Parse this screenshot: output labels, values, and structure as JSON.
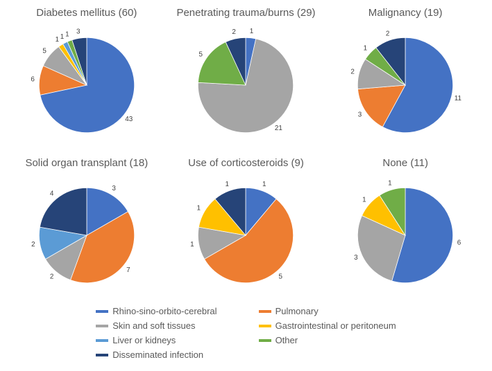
{
  "colors": {
    "rhino": "#4472c4",
    "pulmonary": "#ed7d31",
    "skin": "#a5a5a5",
    "gi": "#ffc000",
    "liver": "#5b9bd5",
    "other": "#70ad47",
    "disseminated": "#264478",
    "label_text": "#595959",
    "slice_label": "#404040",
    "background": "#ffffff"
  },
  "series_order": [
    "rhino",
    "pulmonary",
    "skin",
    "gi",
    "liver",
    "other",
    "disseminated"
  ],
  "series_labels": {
    "rhino": "Rhino-sino-orbito-cerebral",
    "pulmonary": "Pulmonary",
    "skin": "Skin and soft tissues",
    "gi": "Gastrointestinal or peritoneum",
    "liver": "Liver or kidneys",
    "other": "Other",
    "disseminated": "Disseminated infection"
  },
  "label_fontsize": 13,
  "title_fontsize": 15,
  "pie_radius": 90,
  "label_offset": 1.14,
  "start_angle_deg": 90,
  "direction": "clockwise",
  "charts": [
    {
      "title": "Diabetes mellitus (60)",
      "slices": [
        {
          "key": "rhino",
          "value": 43
        },
        {
          "key": "pulmonary",
          "value": 6
        },
        {
          "key": "skin",
          "value": 5
        },
        {
          "key": "gi",
          "value": 1
        },
        {
          "key": "liver",
          "value": 1
        },
        {
          "key": "other",
          "value": 1
        },
        {
          "key": "disseminated",
          "value": 3
        }
      ]
    },
    {
      "title": "Penetrating trauma/burns (29)",
      "slices": [
        {
          "key": "rhino",
          "value": 1
        },
        {
          "key": "skin",
          "value": 21
        },
        {
          "key": "other",
          "value": 5
        },
        {
          "key": "disseminated",
          "value": 2
        }
      ]
    },
    {
      "title": "Malignancy (19)",
      "slices": [
        {
          "key": "rhino",
          "value": 11
        },
        {
          "key": "pulmonary",
          "value": 3
        },
        {
          "key": "skin",
          "value": 2
        },
        {
          "key": "other",
          "value": 1
        },
        {
          "key": "disseminated",
          "value": 2
        }
      ]
    },
    {
      "title": "Solid organ transplant (18)",
      "slices": [
        {
          "key": "rhino",
          "value": 3
        },
        {
          "key": "pulmonary",
          "value": 7
        },
        {
          "key": "skin",
          "value": 2
        },
        {
          "key": "liver",
          "value": 2
        },
        {
          "key": "disseminated",
          "value": 4
        }
      ]
    },
    {
      "title": "Use of corticosteroids (9)",
      "slices": [
        {
          "key": "rhino",
          "value": 1
        },
        {
          "key": "pulmonary",
          "value": 5
        },
        {
          "key": "skin",
          "value": 1
        },
        {
          "key": "gi",
          "value": 1
        },
        {
          "key": "disseminated",
          "value": 1
        }
      ]
    },
    {
      "title": "None (11)",
      "slices": [
        {
          "key": "rhino",
          "value": 6
        },
        {
          "key": "skin",
          "value": 3
        },
        {
          "key": "gi",
          "value": 1
        },
        {
          "key": "other",
          "value": 1
        }
      ]
    }
  ]
}
